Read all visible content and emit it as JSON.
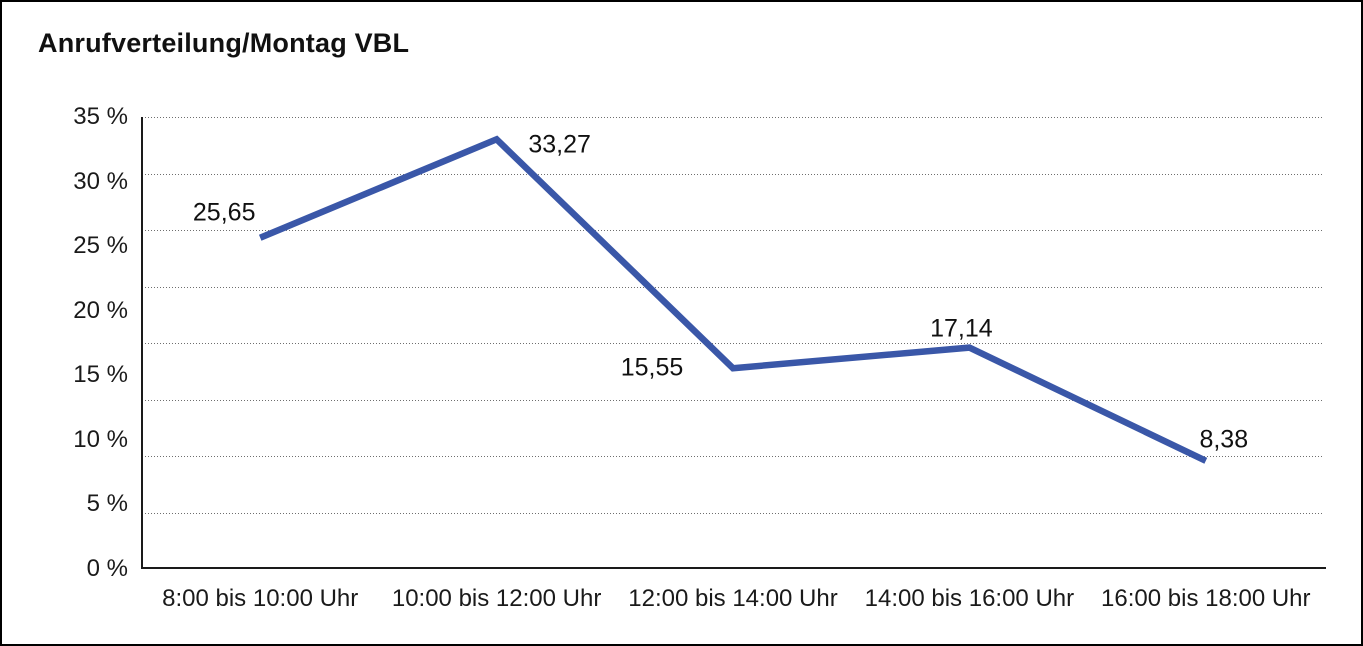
{
  "page": {
    "title": "Anrufverteilung/Montag VBL"
  },
  "chart_data": {
    "type": "line",
    "title": "Anrufverteilung/Montag VBL",
    "categories": [
      "8:00 bis 10:00 Uhr",
      "10:00 bis 12:00 Uhr",
      "12:00 bis 14:00 Uhr",
      "14:00 bis 16:00 Uhr",
      "16:00 bis 18:00 Uhr"
    ],
    "series": [
      {
        "name": "Anrufverteilung Montag",
        "values": [
          25.65,
          33.27,
          15.55,
          17.14,
          8.38
        ],
        "value_labels": [
          "25,65",
          "33,27",
          "15,55",
          "17,14",
          "8,38"
        ],
        "color": "#3a57a8"
      }
    ],
    "xlabel": "",
    "ylabel": "",
    "ylim": [
      0,
      35
    ],
    "y_ticks": [
      35,
      30,
      25,
      20,
      15,
      10,
      5,
      0
    ],
    "y_tick_labels": [
      "35 %",
      "30 %",
      "25 %",
      "20 %",
      "15 %",
      "10 %",
      "5 %",
      "0 %"
    ],
    "grid": "horizontal dotted, 8 equal divisions of plot height",
    "legend": "none"
  },
  "colors": {
    "line": "#3a57a8",
    "text": "#1a1a1a",
    "grid_dots": "#6e6e6e",
    "axis": "#1a1a1a",
    "background": "#ffffff",
    "outer_border": "#000000"
  }
}
